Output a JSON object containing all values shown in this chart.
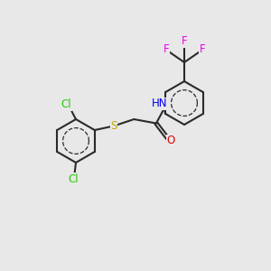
{
  "bg_color": "#e8e8e8",
  "bond_color": "#2a2a2a",
  "bond_lw": 1.5,
  "aromatic_lw": 1.2,
  "figsize": [
    3.0,
    3.0
  ],
  "dpi": 100,
  "colors": {
    "N": "#0000ee",
    "O": "#dd0000",
    "S": "#bbaa00",
    "Cl": "#22cc00",
    "F": "#ee00ee",
    "C": "#2a2a2a"
  },
  "font_size": 8.5,
  "font_size_small": 7.5
}
